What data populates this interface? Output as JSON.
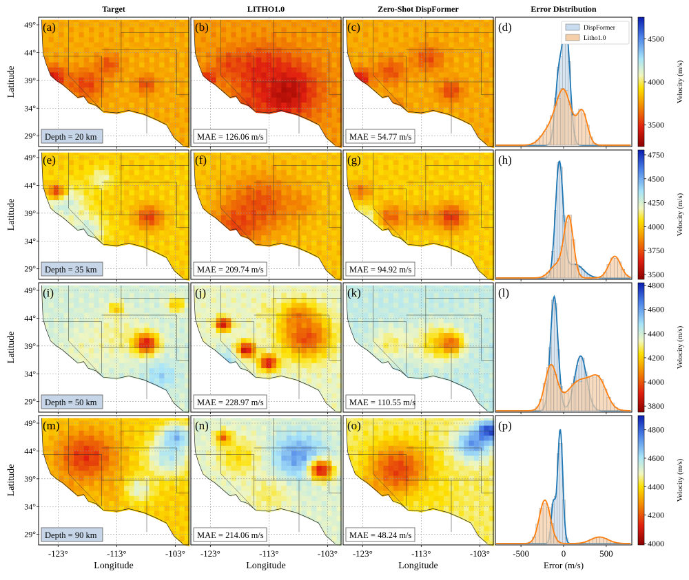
{
  "figure": {
    "column_titles": [
      "Target",
      "LITHO1.0",
      "Zero-Shot DispFormer",
      "Error Distribution"
    ],
    "map_y_ticks": [
      "49°",
      "44°",
      "39°",
      "34°",
      "29°"
    ],
    "map_x_ticks": [
      "-123°",
      "-113°",
      "-103°"
    ],
    "map_xlabel": "Longitude",
    "map_ylabel": "Latitude",
    "hist_x_ticks": [
      "-500",
      "0",
      "500"
    ],
    "hist_xlabel": "Error (m/s)",
    "colorbar_label": "Velocity (m/s)",
    "legend": [
      "DispFormer",
      "Litho1.0"
    ],
    "colors": {
      "dispformer": "#1f77b4",
      "litho": "#ff7f0e",
      "dispformer_fill": "#c9dcef",
      "litho_fill": "#f5cfa9"
    }
  },
  "rows": [
    {
      "labels": [
        "(a)",
        "(b)",
        "(c)",
        "(d)"
      ],
      "depth": "Depth = 20 km",
      "mae_litho": "MAE = 126.06 m/s",
      "mae_dispformer": "MAE = 54.77 m/s",
      "colorbar_ticks": [
        "4500",
        "4000",
        "3500"
      ],
      "colorbar_range": [
        3250,
        4750
      ]
    },
    {
      "labels": [
        "(e)",
        "(f)",
        "(g)",
        "(h)"
      ],
      "depth": "Depth = 35 km",
      "mae_litho": "MAE = 209.74 m/s",
      "mae_dispformer": "MAE = 94.92 m/s",
      "colorbar_ticks": [
        "4750",
        "4500",
        "4250",
        "4000",
        "3750",
        "3500"
      ],
      "colorbar_range": [
        3450,
        4800
      ]
    },
    {
      "labels": [
        "(i)",
        "(j)",
        "(k)",
        "(l)"
      ],
      "depth": "Depth = 50 km",
      "mae_litho": "MAE = 228.97 m/s",
      "mae_dispformer": "MAE = 110.55 m/s",
      "colorbar_ticks": [
        "4800",
        "4600",
        "4400",
        "4200",
        "4000",
        "3800"
      ],
      "colorbar_range": [
        3750,
        4820
      ]
    },
    {
      "labels": [
        "(m)",
        "(n)",
        "(o)",
        "(p)"
      ],
      "depth": "Depth = 90 km",
      "mae_litho": "MAE = 214.06 m/s",
      "mae_dispformer": "MAE = 48.24 m/s",
      "colorbar_ticks": [
        "4800",
        "4600",
        "4400",
        "4200",
        "4000"
      ],
      "colorbar_range": [
        3990,
        4900
      ]
    }
  ],
  "chart_data": {
    "type": "histogram",
    "panels": [
      "(d)",
      "(h)",
      "(l)",
      "(p)"
    ],
    "x_range": [
      -800,
      800
    ],
    "series": [
      {
        "name": "DispFormer",
        "peaks": [
          [
            -60,
            40,
            0.55
          ],
          [
            30,
            45,
            1.0
          ]
        ],
        "panel": "(d)"
      },
      {
        "name": "Litho1.0",
        "peaks": [
          [
            0,
            90,
            0.5
          ],
          [
            220,
            60,
            0.3
          ],
          [
            -180,
            90,
            0.12
          ]
        ],
        "panel": "(d)"
      },
      {
        "name": "DispFormer",
        "peaks": [
          [
            -50,
            45,
            1.0
          ],
          [
            130,
            100,
            0.12
          ]
        ],
        "panel": "(h)"
      },
      {
        "name": "Litho1.0",
        "peaks": [
          [
            60,
            55,
            0.55
          ],
          [
            600,
            70,
            0.2
          ],
          [
            -80,
            80,
            0.12
          ]
        ],
        "panel": "(h)"
      },
      {
        "name": "DispFormer",
        "peaks": [
          [
            -110,
            45,
            1.0
          ],
          [
            200,
            70,
            0.48
          ]
        ],
        "panel": "(l)"
      },
      {
        "name": "Litho1.0",
        "peaks": [
          [
            -150,
            70,
            0.4
          ],
          [
            200,
            160,
            0.28
          ],
          [
            420,
            90,
            0.2
          ]
        ],
        "panel": "(l)"
      },
      {
        "name": "DispFormer",
        "peaks": [
          [
            -40,
            30,
            1.0
          ],
          [
            -120,
            25,
            0.35
          ]
        ],
        "panel": "(p)"
      },
      {
        "name": "Litho1.0",
        "peaks": [
          [
            -220,
            65,
            0.4
          ],
          [
            420,
            100,
            0.06
          ]
        ],
        "panel": "(p)"
      }
    ]
  }
}
